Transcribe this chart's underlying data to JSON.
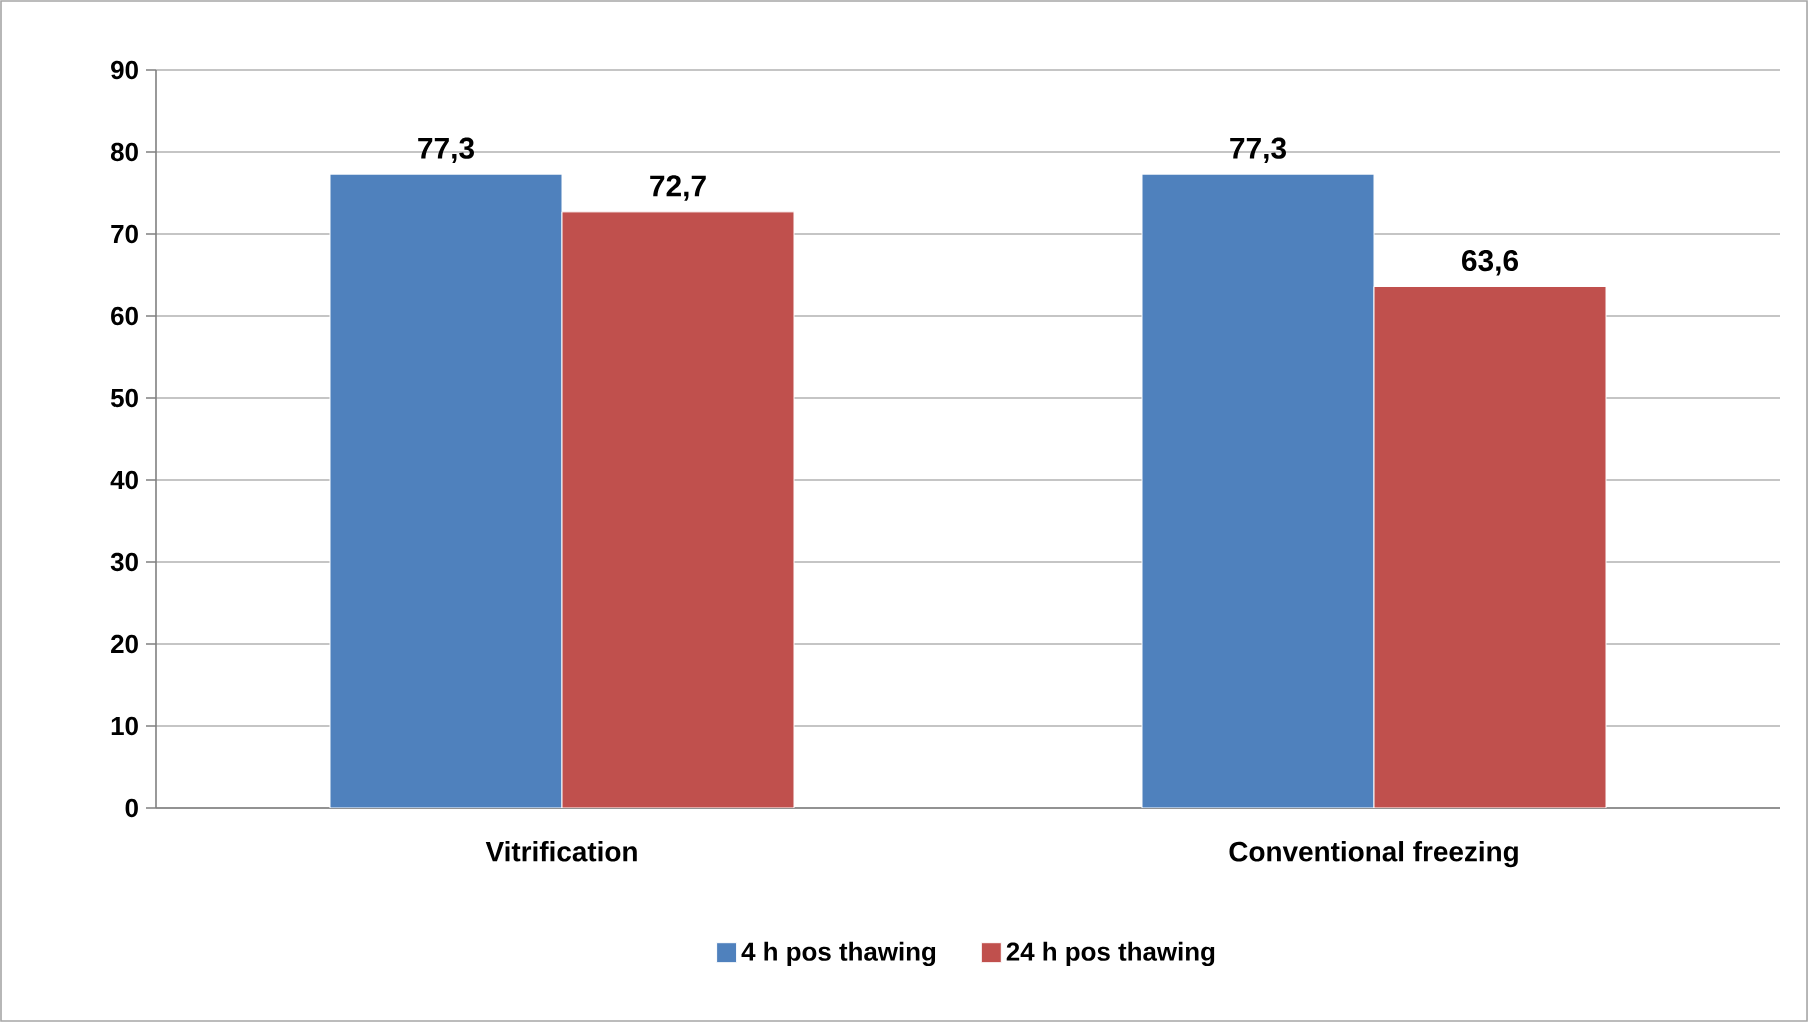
{
  "chart_data": {
    "type": "bar",
    "categories": [
      "Vitrification",
      "Conventional freezing"
    ],
    "series": [
      {
        "name": "4 h pos thawing",
        "color": "#4f81bd",
        "values": [
          77.3,
          77.3
        ],
        "value_labels": [
          "77,3",
          "77,3"
        ]
      },
      {
        "name": "24 h pos thawing",
        "color": "#c0504d",
        "values": [
          72.7,
          63.6
        ],
        "value_labels": [
          "72,7",
          "63,6"
        ]
      }
    ],
    "ylim": [
      0,
      90
    ],
    "yticks": [
      0,
      10,
      20,
      30,
      40,
      50,
      60,
      70,
      80,
      90
    ],
    "grid": "y",
    "legend": "bottom"
  }
}
